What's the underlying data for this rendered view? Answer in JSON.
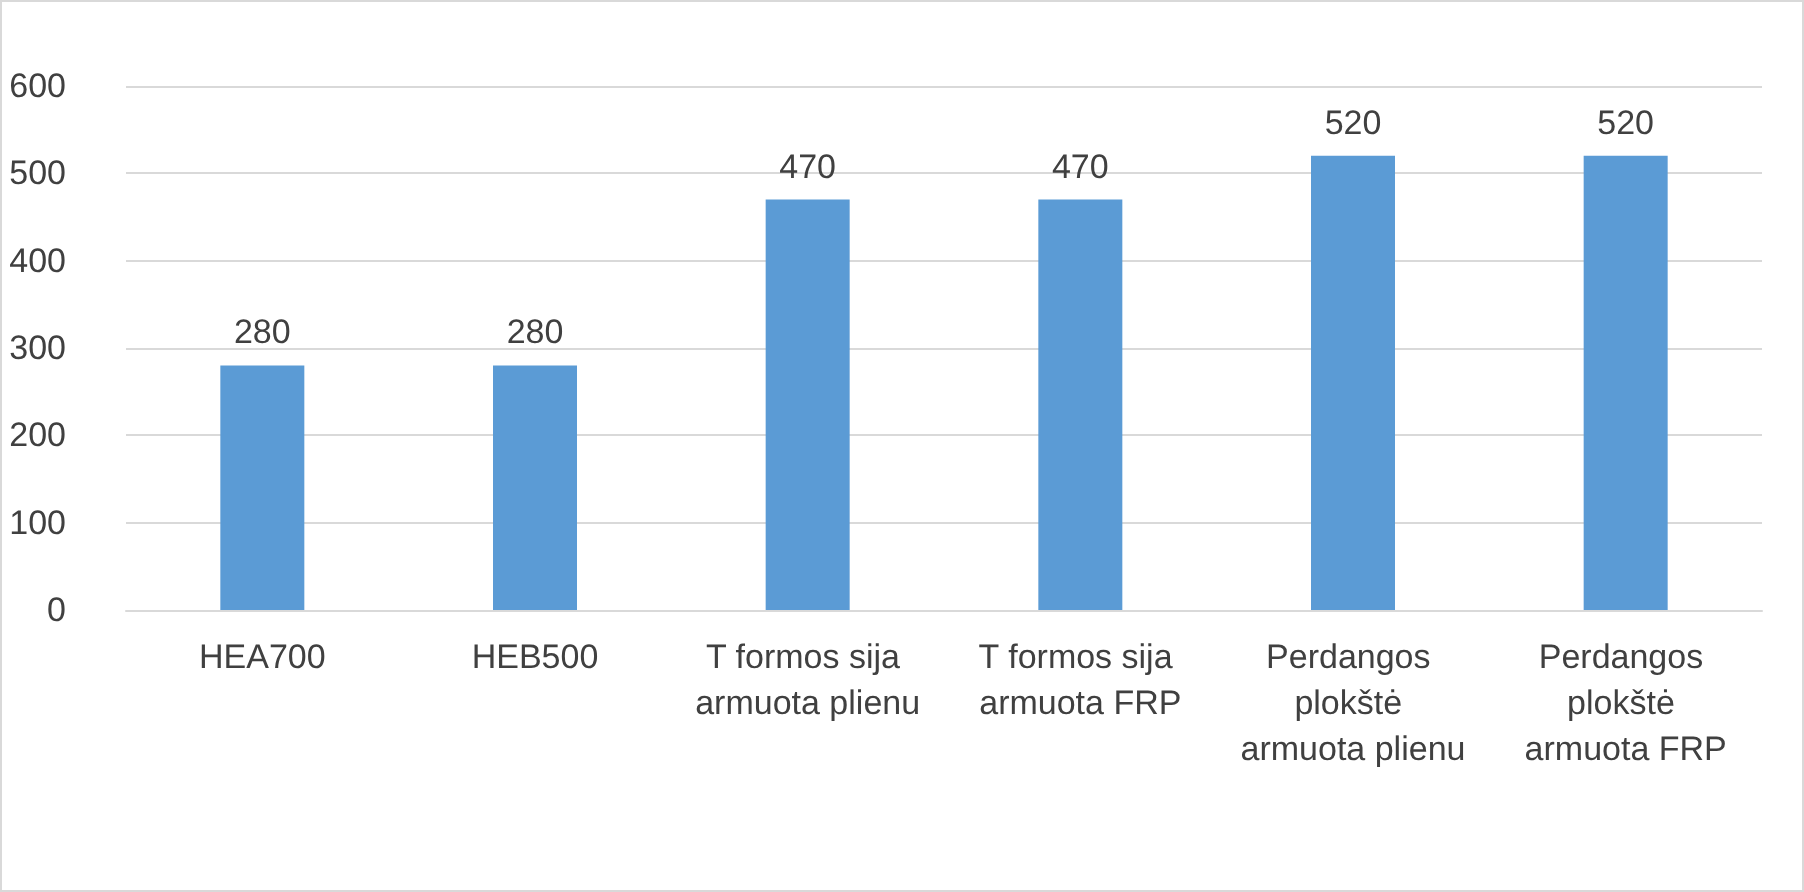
{
  "chart_data": {
    "type": "bar",
    "categories": [
      "HEA700",
      "HEB500",
      "T formos sija armuota plienu",
      "T formos sija armuota FRP",
      "Perdangos plokštė armuota plienu",
      "Perdangos plokštė armuota FRP"
    ],
    "values": [
      280,
      280,
      470,
      470,
      520,
      520
    ],
    "color": "#5b9bd5",
    "ylim": [
      0,
      600
    ],
    "yticks": [
      0,
      100,
      200,
      300,
      400,
      500,
      600
    ],
    "grid": "y",
    "data_labels": true
  }
}
